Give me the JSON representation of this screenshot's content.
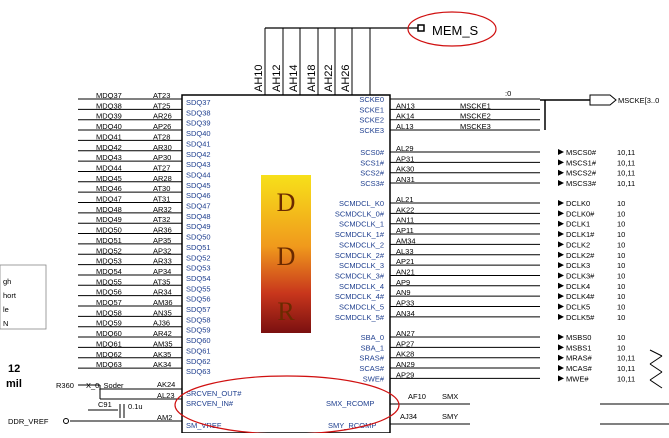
{
  "title_net": "MEM_S",
  "ah_pins": [
    "AH10",
    "AH12",
    "AH14",
    "AH18",
    "AH22",
    "AH26"
  ],
  "ddr_letters": [
    "D",
    "D",
    "R"
  ],
  "left_side": {
    "rows": [
      {
        "net": "MDQ37",
        "pin": "AT23",
        "name": "SDQ37"
      },
      {
        "net": "MDQ38",
        "pin": "AT25",
        "name": "SDQ38"
      },
      {
        "net": "MDQ39",
        "pin": "AR26",
        "name": "SDQ39"
      },
      {
        "net": "MDQ40",
        "pin": "AP26",
        "name": "SDQ40"
      },
      {
        "net": "MDQ41",
        "pin": "AT28",
        "name": "SDQ41"
      },
      {
        "net": "MDQ42",
        "pin": "AR30",
        "name": "SDQ42"
      },
      {
        "net": "MDQ43",
        "pin": "AP30",
        "name": "SDQ43"
      },
      {
        "net": "MDQ44",
        "pin": "AT27",
        "name": "SDQ44"
      },
      {
        "net": "MDQ45",
        "pin": "AR28",
        "name": "SDQ45"
      },
      {
        "net": "MDQ46",
        "pin": "AT30",
        "name": "SDQ46"
      },
      {
        "net": "MDQ47",
        "pin": "AT31",
        "name": "SDQ47"
      },
      {
        "net": "MDQ48",
        "pin": "AR32",
        "name": "SDQ48"
      },
      {
        "net": "MDQ49",
        "pin": "AT32",
        "name": "SDQ49"
      },
      {
        "net": "MDQ50",
        "pin": "AR36",
        "name": "SDQ50"
      },
      {
        "net": "MDQ51",
        "pin": "AP35",
        "name": "SDQ51"
      },
      {
        "net": "MDQ52",
        "pin": "AP32",
        "name": "SDQ52"
      },
      {
        "net": "MDQ53",
        "pin": "AR33",
        "name": "SDQ53"
      },
      {
        "net": "MDQ54",
        "pin": "AP34",
        "name": "SDQ54"
      },
      {
        "net": "MDQ55",
        "pin": "AT35",
        "name": "SDQ55"
      },
      {
        "net": "MDQ56",
        "pin": "AR34",
        "name": "SDQ56"
      },
      {
        "net": "MDQ57",
        "pin": "AM36",
        "name": "SDQ57"
      },
      {
        "net": "MDQ58",
        "pin": "AN35",
        "name": "SDQ58"
      },
      {
        "net": "MDQ59",
        "pin": "AJ36",
        "name": "SDQ59"
      },
      {
        "net": "MDQ60",
        "pin": "AR42",
        "name": "SDQ60"
      },
      {
        "net": "MDQ61",
        "pin": "AM35",
        "name": "SDQ61"
      },
      {
        "net": "MDQ62",
        "pin": "AK35",
        "name": "SDQ62"
      },
      {
        "net": "MDQ63",
        "pin": "AK34",
        "name": "SDQ63"
      }
    ],
    "srcven_out": {
      "name": "SRCVEN_OUT#",
      "pin": "AK24"
    },
    "srcven_in": {
      "name": "SRCVEN_IN#",
      "pin": "AL23"
    },
    "sm_vref": {
      "name": "SM_VREF",
      "pin": "AM2"
    },
    "resistor": "R360",
    "resistor_note": "X_0_Soder",
    "capacitor": "C91",
    "cap_value": "0.1u",
    "vref_net": "DDR_VREF",
    "side_text": [
      "gh",
      "hort",
      "le",
      "N"
    ],
    "side_num": "12",
    "side_unit": "mil"
  },
  "right_side": {
    "cke": [
      {
        "name": "SCKE0",
        "pin": "",
        "net": ""
      },
      {
        "name": "SCKE1",
        "pin": "AN13",
        "net": "MSCKE1"
      },
      {
        "name": "SCKE2",
        "pin": "AK14",
        "net": "MSCKE2"
      },
      {
        "name": "SCKE3",
        "pin": "AL13",
        "net": "MSCKE3"
      }
    ],
    "cke_bus": "MSCKE[3..0]",
    "cs": [
      {
        "name": "SCS0#",
        "pin": "AL29",
        "net": "MSCS0#",
        "page": "10,11"
      },
      {
        "name": "SCS1#",
        "pin": "AP31",
        "net": "MSCS1#",
        "page": "10,11"
      },
      {
        "name": "SCS2#",
        "pin": "AK30",
        "net": "MSCS2#",
        "page": "10,11"
      },
      {
        "name": "SCS3#",
        "pin": "AN31",
        "net": "MSCS3#",
        "page": "10,11"
      }
    ],
    "clk": [
      {
        "name": "SCMDCL_K0",
        "pin": "AL21",
        "net": "DCLK0",
        "page": "10"
      },
      {
        "name": "SCMDCLK_0#",
        "pin": "AK22",
        "net": "DCLK0#",
        "page": "10"
      },
      {
        "name": "SCMDCLK_1",
        "pin": "AN11",
        "net": "DCLK1",
        "page": "10"
      },
      {
        "name": "SCMDCLK_1#",
        "pin": "AP11",
        "net": "DCLK1#",
        "page": "10"
      },
      {
        "name": "SCMDCLK_2",
        "pin": "AM34",
        "net": "DCLK2",
        "page": "10"
      },
      {
        "name": "SCMDCLK_2#",
        "pin": "AL33",
        "net": "DCLK2#",
        "page": "10"
      },
      {
        "name": "SCMDCLK_3",
        "pin": "AP21",
        "net": "DCLK3",
        "page": "10"
      },
      {
        "name": "SCMDCLK_3#",
        "pin": "AN21",
        "net": "DCLK3#",
        "page": "10"
      },
      {
        "name": "SCMDCLK_4",
        "pin": "AP9",
        "net": "DCLK4",
        "page": "10"
      },
      {
        "name": "SCMDCLK_4#",
        "pin": "AN9",
        "net": "DCLK4#",
        "page": "10"
      },
      {
        "name": "SCMDCLK_5",
        "pin": "AP33",
        "net": "DCLK5",
        "page": "10"
      },
      {
        "name": "SCMDCLK_5#",
        "pin": "AN34",
        "net": "DCLK5#",
        "page": "10"
      }
    ],
    "cmd": [
      {
        "name": "SBA_0",
        "pin": "AN27",
        "net": "MSBS0",
        "page": "10"
      },
      {
        "name": "SBA_1",
        "pin": "AP27",
        "net": "MSBS1",
        "page": "10"
      },
      {
        "name": "SRAS#",
        "pin": "AK28",
        "net": "MRAS#",
        "page": "10,11"
      },
      {
        "name": "SCAS#",
        "pin": "AN29",
        "net": "MCAS#",
        "page": "10,11"
      },
      {
        "name": "SWE#",
        "pin": "AP29",
        "net": "MWE#",
        "page": "10,11"
      }
    ],
    "rcomp": [
      {
        "name": "SMX_RCOMP",
        "pin": "AF10",
        "net": "SMX"
      },
      {
        "name": "SMY_RCOMP",
        "pin": "AJ34",
        "net": "SMY"
      }
    ],
    "top_partial": ":0",
    "bus_partial": "MSCKE[3..0"
  }
}
